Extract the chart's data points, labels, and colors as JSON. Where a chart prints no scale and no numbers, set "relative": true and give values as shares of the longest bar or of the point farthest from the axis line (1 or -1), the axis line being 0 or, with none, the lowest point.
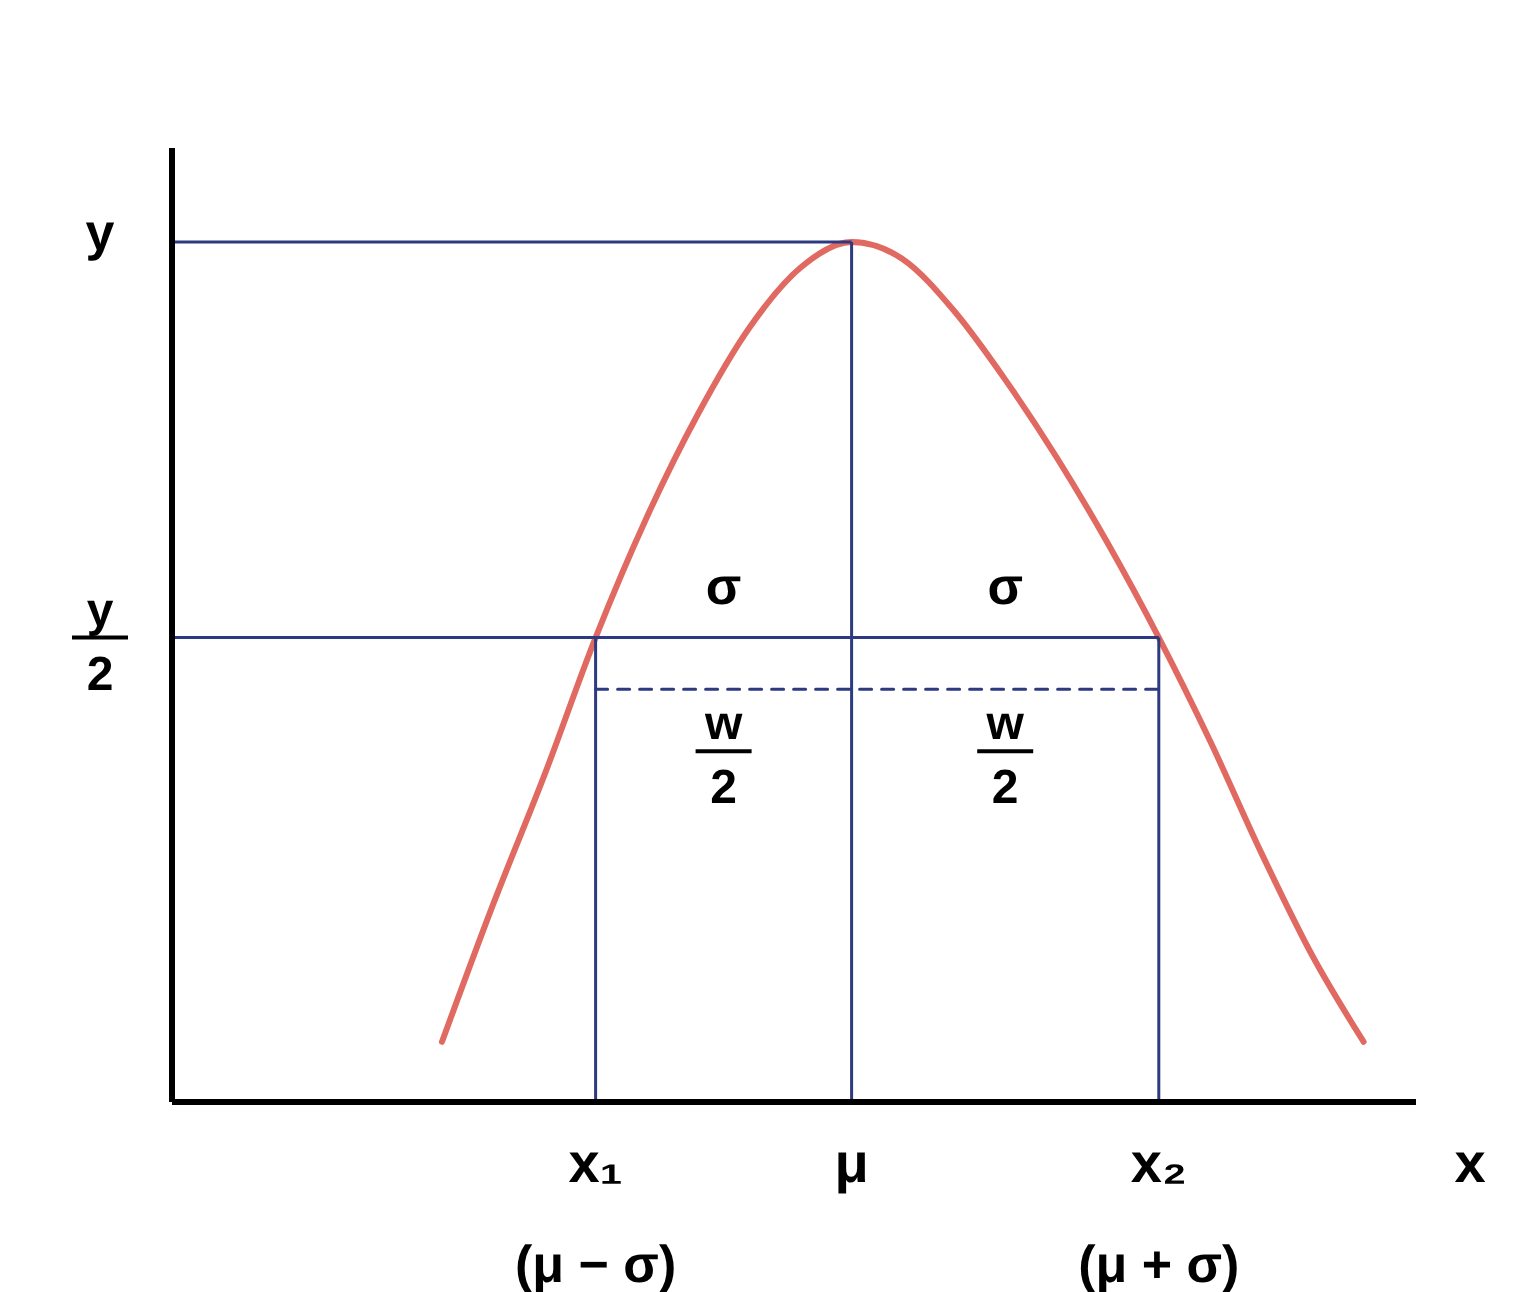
{
  "chart_data": {
    "type": "line",
    "relative": true,
    "xlabel": "x",
    "categories": [
      null,
      null,
      null,
      null,
      null,
      null,
      null,
      null,
      "x₁",
      null,
      null,
      null,
      null,
      "μ",
      null,
      null,
      null,
      null,
      null,
      "x₂",
      null,
      null,
      null,
      null,
      null
    ],
    "series": [
      {
        "color": "#e06a62",
        "values": [
          null,
          null,
          null,
          null,
          null,
          0.07,
          0.23,
          0.38,
          0.54,
          0.68,
          0.8,
          0.9,
          0.97,
          1.0,
          0.98,
          0.92,
          0.84,
          0.75,
          0.65,
          0.54,
          0.42,
          0.29,
          0.17,
          0.07,
          null
        ]
      },
      {
        "color": "#2e3a80",
        "line_style": "dashed",
        "values": [
          null,
          null,
          null,
          null,
          null,
          null,
          null,
          null,
          0.48,
          0.48,
          0.48,
          0.48,
          0.48,
          0.48,
          0.48,
          0.48,
          0.48,
          0.48,
          0.48,
          0.48,
          null,
          null,
          null,
          null,
          null
        ]
      }
    ],
    "ref_lines": [
      {
        "axis": "y",
        "value": 1.0,
        "label": "y",
        "color": "#2e3a80"
      },
      {
        "axis": "y",
        "value": 0.54,
        "label": "y/2",
        "color": "#2e3a80"
      },
      {
        "axis": "x",
        "value": "x₁",
        "color": "#2e3a80"
      },
      {
        "axis": "x",
        "value": "μ",
        "color": "#2e3a80"
      },
      {
        "axis": "x",
        "value": "x₂",
        "color": "#2e3a80"
      }
    ],
    "annotations": [
      {
        "text": "σ",
        "x": "x₁",
        "y": 0.54
      },
      {
        "text": "σ",
        "x": "μ",
        "y": 0.54
      },
      "w/2",
      "w/2",
      "(μ − σ)",
      "(μ + σ)"
    ]
  }
}
